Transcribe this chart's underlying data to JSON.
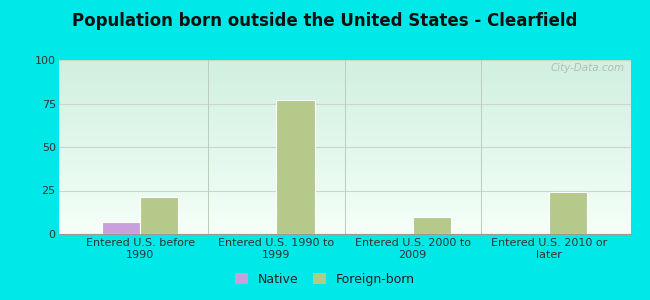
{
  "title": "Population born outside the United States - Clearfield",
  "categories": [
    "Entered U.S. before\n1990",
    "Entered U.S. 1990 to\n1999",
    "Entered U.S. 2000 to\n2009",
    "Entered U.S. 2010 or\nlater"
  ],
  "native_values": [
    7,
    0,
    0,
    0
  ],
  "foreign_born_values": [
    21,
    77,
    10,
    24
  ],
  "native_color": "#c9a0dc",
  "foreign_born_color": "#b5c98a",
  "bar_edge_color": "#ffffff",
  "ylim": [
    0,
    100
  ],
  "yticks": [
    0,
    25,
    50,
    75,
    100
  ],
  "bg_top_color": "#d0f0e0",
  "bg_bottom_color": "#f5fff8",
  "outer_background": "#00e8e8",
  "grid_color": "#c8d8c8",
  "title_fontsize": 12,
  "tick_fontsize": 8,
  "legend_native_label": "Native",
  "legend_foreign_label": "Foreign-born",
  "watermark": "City-Data.com",
  "divider_color": "#bbccbb"
}
